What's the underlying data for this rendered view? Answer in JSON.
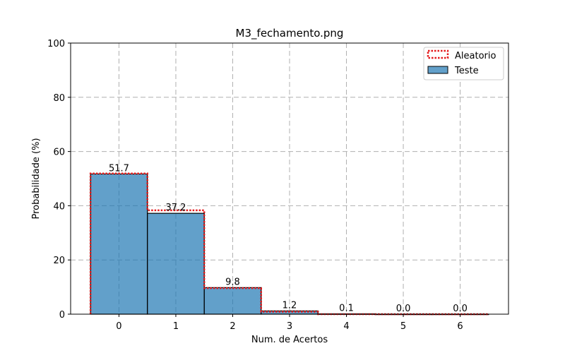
{
  "chart_data": {
    "type": "bar",
    "title": "M3_fechamento.png",
    "xlabel": "Num. de Acertos",
    "ylabel": "Probabilidade (%)",
    "ylim": [
      0,
      100
    ],
    "xlim": [
      -0.85,
      6.85
    ],
    "categories": [
      "0",
      "1",
      "2",
      "3",
      "4",
      "5",
      "6"
    ],
    "x": [
      0,
      1,
      2,
      3,
      4,
      5,
      6
    ],
    "yticks": [
      0,
      20,
      40,
      60,
      80,
      100
    ],
    "grid": true,
    "legend": "top-right",
    "series": [
      {
        "name": "Aleatorio",
        "style": "step-outline",
        "color": "#e41a1c",
        "values": [
          51.9,
          38.3,
          9.6,
          0.9,
          0.0,
          0.0,
          0.0
        ]
      },
      {
        "name": "Teste",
        "style": "bar",
        "color": "#1f77b4",
        "values": [
          51.7,
          37.2,
          9.8,
          1.2,
          0.1,
          0.0,
          0.0
        ]
      }
    ],
    "data_labels": [
      "51.7",
      "37.2",
      "9.8",
      "1.2",
      "0.1",
      "0.0",
      "0.0"
    ]
  }
}
